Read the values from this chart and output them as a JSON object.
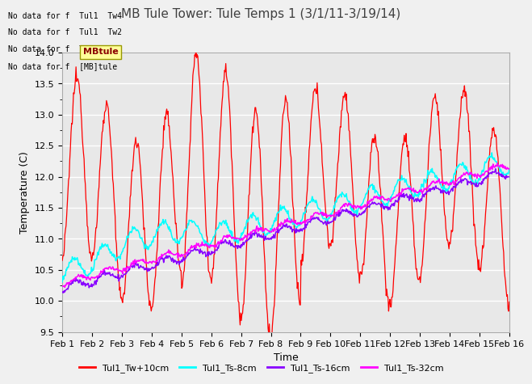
{
  "title": "MB Tule Tower: Tule Temps 1 (3/1/11-3/19/14)",
  "xlabel": "Time",
  "ylabel": "Temperature (C)",
  "ylim": [
    9.5,
    14.0
  ],
  "yticks": [
    9.5,
    10.0,
    10.5,
    11.0,
    11.5,
    12.0,
    12.5,
    13.0,
    13.5,
    14.0
  ],
  "xtick_labels": [
    "Feb 1",
    "Feb 2",
    "Feb 3",
    "Feb 4",
    "Feb 5",
    "Feb 6",
    "Feb 7",
    "Feb 8",
    "Feb 9",
    "Feb 10",
    "Feb 11",
    "Feb 12",
    "Feb 13",
    "Feb 14",
    "Feb 15",
    "Feb 16"
  ],
  "legend_labels": [
    "Tul1_Tw+10cm",
    "Tul1_Ts-8cm",
    "Tul1_Ts-16cm",
    "Tul1_Ts-32cm"
  ],
  "legend_colors": [
    "#ff0000",
    "#00ffff",
    "#8800ff",
    "#ff00ff"
  ],
  "no_data_texts": [
    "No data for f  Tul1  Tw4",
    "No data for f  Tul1  Tw2",
    "No data for f  Tul1  Ts2",
    "No data for f  [MB]tule"
  ],
  "bg_color": "#e8e8e8",
  "grid_color": "#ffffff",
  "title_fontsize": 11,
  "axis_fontsize": 9,
  "tick_fontsize": 8
}
